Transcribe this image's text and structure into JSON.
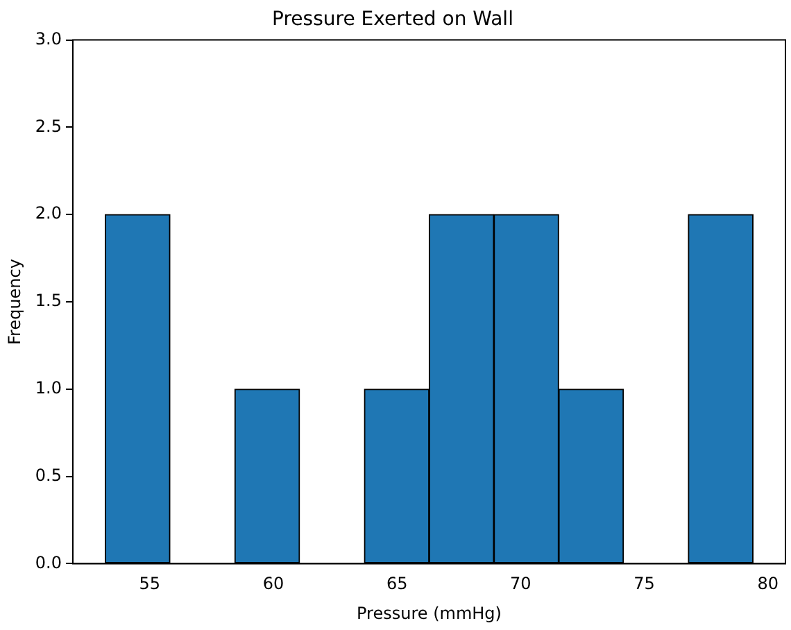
{
  "chart_data": {
    "type": "histogram",
    "title": "Pressure Exerted on Wall",
    "xlabel": "Pressure (mmHg)",
    "ylabel": "Frequency",
    "bins": [
      53.2,
      55.82,
      58.44,
      61.06,
      63.68,
      66.3,
      68.92,
      71.54,
      74.16,
      76.78,
      79.4
    ],
    "values": [
      2,
      0,
      1,
      0,
      1,
      2,
      2,
      1,
      0,
      2
    ],
    "color": "#1f77b4",
    "xlim": [
      51.89,
      80.71
    ],
    "xticks": [
      55,
      60,
      65,
      70,
      75,
      80
    ],
    "ylim": [
      0,
      3
    ],
    "yticks": [
      {
        "value": 0,
        "label": "0.0"
      },
      {
        "value": 0.5,
        "label": "0.5"
      },
      {
        "value": 1,
        "label": "1.0"
      },
      {
        "value": 1.5,
        "label": "1.5"
      },
      {
        "value": 2,
        "label": "2.0"
      },
      {
        "value": 2.5,
        "label": "2.5"
      },
      {
        "value": 3,
        "label": "3.0"
      }
    ],
    "grid": false,
    "legend": false
  }
}
